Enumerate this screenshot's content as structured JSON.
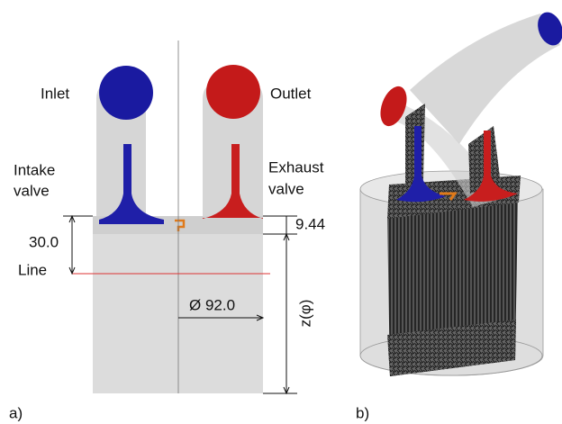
{
  "panel_a": {
    "label": "a)",
    "inlet": "Inlet",
    "outlet": "Outlet",
    "intake_valve": [
      "Intake",
      "valve"
    ],
    "exhaust_valve": [
      "Exhaust",
      "valve"
    ],
    "dim_offset": "30.0",
    "dim_gap": "9.44",
    "line": "Line",
    "diameter": "Ø 92.0",
    "z": "z(φ)"
  },
  "panel_b": {
    "label": "b)"
  }
}
